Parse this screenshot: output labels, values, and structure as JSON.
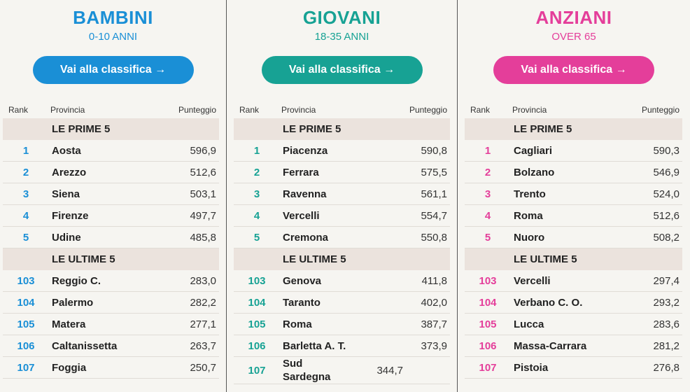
{
  "headers": {
    "rank": "Rank",
    "province": "Provincia",
    "score": "Punteggio"
  },
  "sections": {
    "top": "LE PRIME 5",
    "bottom": "LE ULTIME 5"
  },
  "panels": [
    {
      "title": "BAMBINI",
      "subtitle": "0-10 ANNI",
      "button": "Vai alla classifica →",
      "accent": "#1a8fd6",
      "top": [
        {
          "rank": "1",
          "name": "Aosta",
          "score": "596,9"
        },
        {
          "rank": "2",
          "name": "Arezzo",
          "score": "512,6"
        },
        {
          "rank": "3",
          "name": "Siena",
          "score": "503,1"
        },
        {
          "rank": "4",
          "name": "Firenze",
          "score": "497,7"
        },
        {
          "rank": "5",
          "name": "Udine",
          "score": "485,8"
        }
      ],
      "bottom": [
        {
          "rank": "103",
          "name": "Reggio C.",
          "score": "283,0"
        },
        {
          "rank": "104",
          "name": "Palermo",
          "score": "282,2"
        },
        {
          "rank": "105",
          "name": "Matera",
          "score": "277,1"
        },
        {
          "rank": "106",
          "name": "Caltanissetta",
          "score": "263,7"
        },
        {
          "rank": "107",
          "name": "Foggia",
          "score": "250,7"
        }
      ]
    },
    {
      "title": "GIOVANI",
      "subtitle": "18-35 ANNI",
      "button": "Vai alla classifica →",
      "accent": "#17a294",
      "top": [
        {
          "rank": "1",
          "name": "Piacenza",
          "score": "590,8"
        },
        {
          "rank": "2",
          "name": "Ferrara",
          "score": "575,5"
        },
        {
          "rank": "3",
          "name": "Ravenna",
          "score": "561,1"
        },
        {
          "rank": "4",
          "name": "Vercelli",
          "score": "554,7"
        },
        {
          "rank": "5",
          "name": "Cremona",
          "score": "550,8"
        }
      ],
      "bottom": [
        {
          "rank": "103",
          "name": "Genova",
          "score": "411,8"
        },
        {
          "rank": "104",
          "name": "Taranto",
          "score": "402,0"
        },
        {
          "rank": "105",
          "name": "Roma",
          "score": "387,7"
        },
        {
          "rank": "106",
          "name": "Barletta A. T.",
          "score": "373,9"
        },
        {
          "rank": "107",
          "name": "Sud Sardegna",
          "score": "344,7"
        }
      ]
    },
    {
      "title": "ANZIANI",
      "subtitle": "OVER 65",
      "button": "Vai alla classifica →",
      "accent": "#e43e9a",
      "top": [
        {
          "rank": "1",
          "name": "Cagliari",
          "score": "590,3"
        },
        {
          "rank": "2",
          "name": "Bolzano",
          "score": "546,9"
        },
        {
          "rank": "3",
          "name": "Trento",
          "score": "524,0"
        },
        {
          "rank": "4",
          "name": "Roma",
          "score": "512,6"
        },
        {
          "rank": "5",
          "name": "Nuoro",
          "score": "508,2"
        }
      ],
      "bottom": [
        {
          "rank": "103",
          "name": "Vercelli",
          "score": "297,4"
        },
        {
          "rank": "104",
          "name": "Verbano C. O.",
          "score": "293,2"
        },
        {
          "rank": "105",
          "name": "Lucca",
          "score": "283,6"
        },
        {
          "rank": "106",
          "name": "Massa-Carrara",
          "score": "281,2"
        },
        {
          "rank": "107",
          "name": "Pistoia",
          "score": "276,8"
        }
      ]
    }
  ]
}
